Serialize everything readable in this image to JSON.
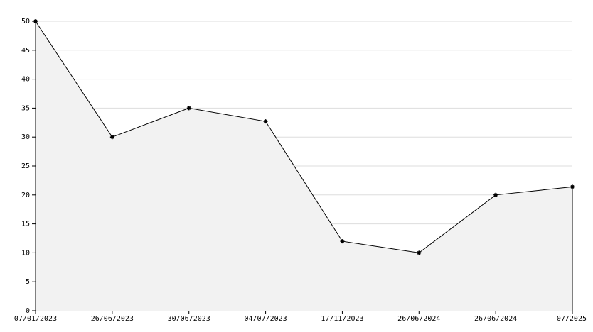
{
  "chart_data": {
    "type": "area",
    "categories": [
      "07/01/2023",
      "26/06/2023",
      "30/06/2023",
      "04/07/2023",
      "17/11/2023",
      "26/06/2024",
      "26/06/2024",
      "07/2025"
    ],
    "values": [
      50,
      30,
      35,
      32.7,
      12,
      10,
      20,
      21.4
    ],
    "color": "#000000",
    "fill": "#f2f2f2",
    "ylim": [
      0,
      50
    ],
    "yticks": [
      0,
      5,
      10,
      15,
      20,
      25,
      30,
      35,
      40,
      45,
      50
    ],
    "grid": true
  }
}
